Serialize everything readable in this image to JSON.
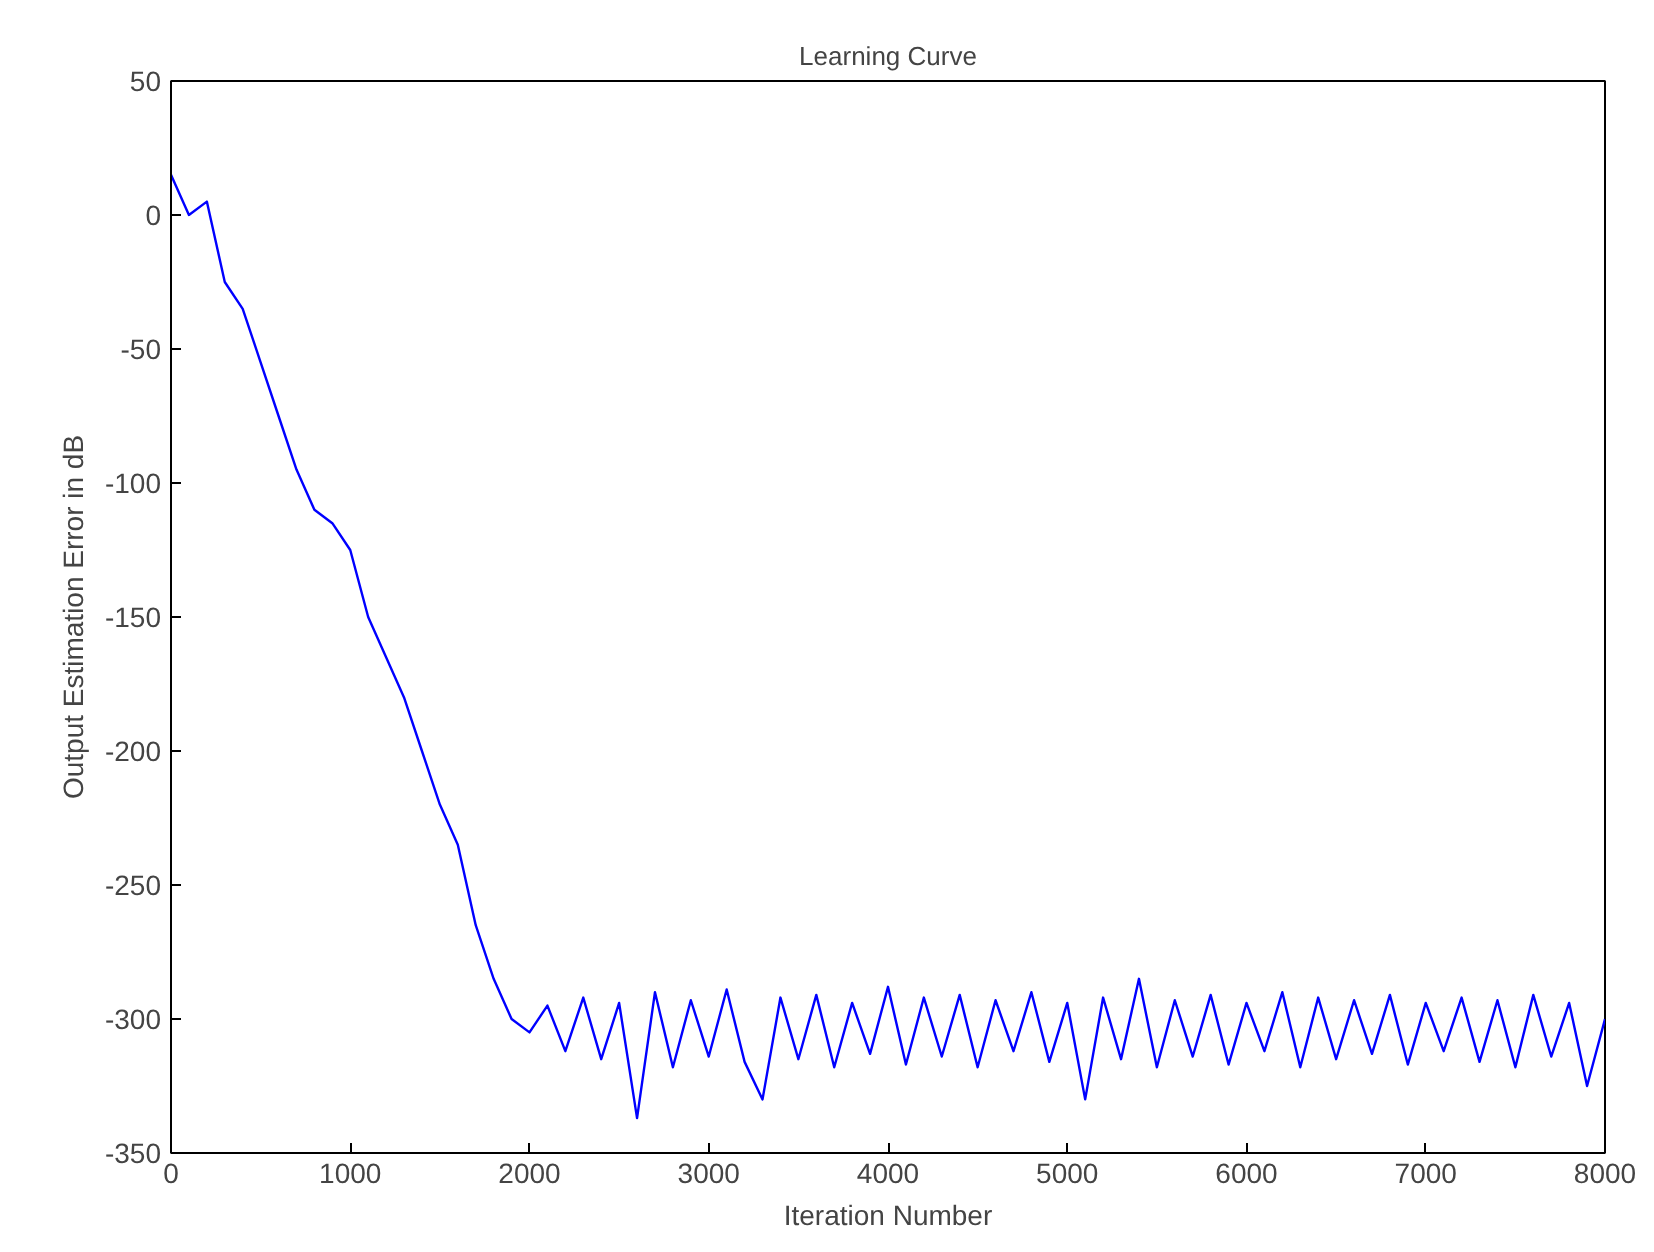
{
  "chart_data": {
    "type": "line",
    "title": "Learning Curve",
    "xlabel": "Iteration Number",
    "ylabel": "Output Estimation Error in dB",
    "xlim": [
      0,
      8000
    ],
    "xticks": [
      0,
      1000,
      2000,
      3000,
      4000,
      5000,
      6000,
      7000,
      8000
    ],
    "ylim": [
      -350,
      50
    ],
    "yticks": [
      -350,
      -300,
      -250,
      -200,
      -150,
      -100,
      -50,
      0,
      50
    ],
    "grid": false,
    "series": [
      {
        "color": "#0000ff",
        "x": [
          0,
          100,
          200,
          300,
          400,
          500,
          600,
          700,
          800,
          900,
          1000,
          1100,
          1200,
          1300,
          1400,
          1500,
          1600,
          1700,
          1800,
          1900,
          2000,
          2100,
          2200,
          2300,
          2400,
          2500,
          2600,
          2700,
          2800,
          2900,
          3000,
          3100,
          3200,
          3300,
          3400,
          3500,
          3600,
          3700,
          3800,
          3900,
          4000,
          4100,
          4200,
          4300,
          4400,
          4500,
          4600,
          4700,
          4800,
          4900,
          5000,
          5100,
          5200,
          5300,
          5400,
          5500,
          5600,
          5700,
          5800,
          5900,
          6000,
          6100,
          6200,
          6300,
          6400,
          6500,
          6600,
          6700,
          6800,
          6900,
          7000,
          7100,
          7200,
          7300,
          7400,
          7500,
          7600,
          7700,
          7800,
          7900,
          8000
        ],
        "values": [
          15,
          0,
          5,
          -25,
          -35,
          -55,
          -75,
          -95,
          -110,
          -115,
          -125,
          -150,
          -165,
          -180,
          -200,
          -220,
          -235,
          -265,
          -285,
          -300,
          -305,
          -295,
          -312,
          -292,
          -315,
          -294,
          -337,
          -290,
          -318,
          -293,
          -314,
          -289,
          -316,
          -330,
          -292,
          -315,
          -291,
          -318,
          -294,
          -313,
          -288,
          -317,
          -292,
          -314,
          -291,
          -318,
          -293,
          -312,
          -290,
          -316,
          -294,
          -330,
          -292,
          -315,
          -285,
          -318,
          -293,
          -314,
          -291,
          -317,
          -294,
          -312,
          -290,
          -318,
          -292,
          -315,
          -293,
          -313,
          -291,
          -317,
          -294,
          -312,
          -292,
          -316,
          -293,
          -318,
          -291,
          -314,
          -294,
          -325,
          -300
        ]
      }
    ]
  }
}
